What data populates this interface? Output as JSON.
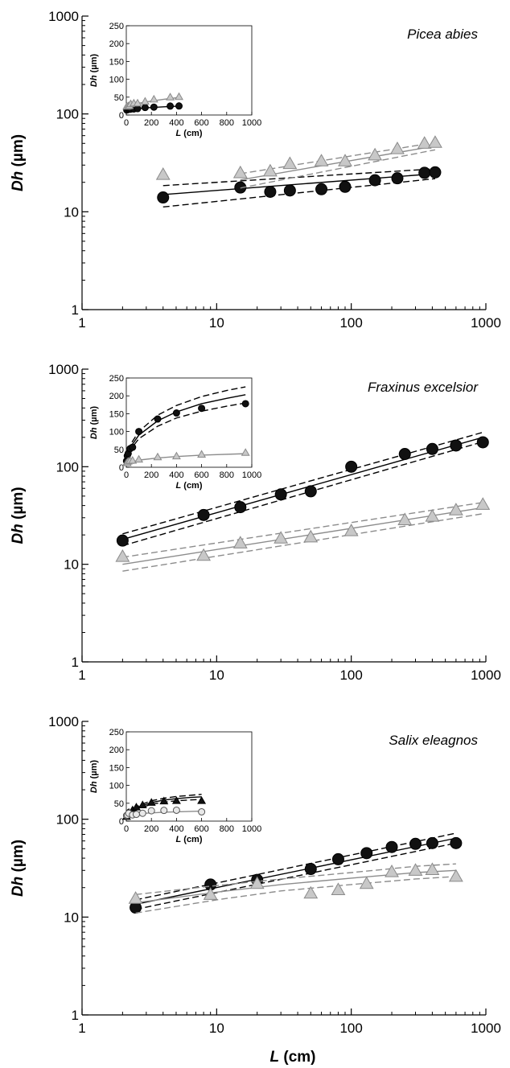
{
  "axis_labels": {
    "y_var": "Dh",
    "y_unit": " (µm)",
    "x_var": "L",
    "x_unit": " (cm)"
  },
  "colors": {
    "black_series": "#111111",
    "grey_series": "#c8c8c8",
    "grey_line": "#8c8c8c",
    "white_series": "#e8e8e8"
  },
  "chart_data": [
    {
      "type": "scatter",
      "title": "Picea abies",
      "xlabel": "L (cm)",
      "ylabel": "Dh (µm)",
      "xscale": "log",
      "yscale": "log",
      "xlim": [
        1,
        1000
      ],
      "ylim": [
        1,
        1000
      ],
      "xticks": [
        "1",
        "10",
        "100",
        "1000"
      ],
      "yticks": [
        "1",
        "10",
        "100",
        "1000"
      ],
      "grid": false,
      "series": [
        {
          "marker": "circle",
          "color": "black",
          "x": [
            4,
            15,
            25,
            35,
            60,
            90,
            150,
            220,
            350,
            420
          ],
          "y": [
            14,
            17.7,
            16,
            16.5,
            17,
            18,
            21,
            22,
            25,
            25.3
          ],
          "fit": {
            "x": [
              4,
              420
            ],
            "y": [
              15,
              24.5
            ],
            "ci_lower": [
              11.2,
              21.8
            ],
            "ci_upper": [
              18.5,
              27.5
            ]
          }
        },
        {
          "marker": "triangle",
          "color": "grey",
          "x": [
            4,
            15,
            25,
            35,
            60,
            90,
            150,
            220,
            350,
            420
          ],
          "y": [
            24,
            25,
            26,
            31,
            33,
            33,
            38,
            44,
            50,
            51
          ],
          "fit": {
            "x": [
              15,
              420
            ],
            "y": [
              21.2,
              47
            ],
            "ci_lower": [
              17.5,
              43
            ],
            "ci_upper": [
              24.5,
              51
            ]
          }
        }
      ],
      "inset": {
        "type": "scatter",
        "xlabel": "L (cm)",
        "ylabel": "Dh (µm)",
        "xlim": [
          0,
          1000
        ],
        "ylim": [
          0,
          250
        ],
        "xticks": [
          "0",
          "200",
          "400",
          "600",
          "800",
          "1000"
        ],
        "yticks": [
          "0",
          "50",
          "100",
          "150",
          "200",
          "250"
        ],
        "series": [
          {
            "marker": "circle",
            "color": "black",
            "x": [
              4,
              15,
              25,
              35,
              60,
              90,
              150,
              220,
              350,
              420
            ],
            "y": [
              14,
              17.7,
              16,
              16.5,
              17,
              18,
              21,
              22,
              25,
              25.3
            ],
            "fit": {
              "x": [
                4,
                40,
                100,
                200,
                300,
                420
              ],
              "y": [
                14,
                16.5,
                18.5,
                21,
                23,
                25
              ]
            }
          },
          {
            "marker": "triangle",
            "color": "grey",
            "x": [
              4,
              15,
              25,
              35,
              60,
              90,
              150,
              220,
              350,
              420
            ],
            "y": [
              24,
              25,
              26,
              31,
              33,
              33,
              38,
              44,
              50,
              51
            ],
            "fit": {
              "x": [
                4,
                40,
                100,
                200,
                300,
                420
              ],
              "y": [
                22,
                28,
                33,
                39,
                44,
                49
              ]
            }
          }
        ]
      }
    },
    {
      "type": "scatter",
      "title": "Fraxinus excelsior",
      "xlabel": "L (cm)",
      "ylabel": "Dh (µm)",
      "xscale": "log",
      "yscale": "log",
      "xlim": [
        1,
        1000
      ],
      "ylim": [
        1,
        1000
      ],
      "xticks": [
        "1",
        "10",
        "100",
        "1000"
      ],
      "yticks": [
        "1",
        "10",
        "100",
        "1000"
      ],
      "grid": false,
      "series": [
        {
          "marker": "circle",
          "color": "black",
          "x": [
            2,
            8,
            15,
            30,
            50,
            100,
            250,
            400,
            600,
            950
          ],
          "y": [
            17.5,
            32,
            38.5,
            52,
            56,
            100,
            135,
            152,
            165,
            178
          ],
          "fit": {
            "x": [
              2,
              950
            ],
            "y": [
              18,
              200
            ],
            "ci_lower": [
              15.5,
              180
            ],
            "ci_upper": [
              20.5,
              225
            ]
          }
        },
        {
          "marker": "triangle",
          "color": "grey",
          "x": [
            2,
            8,
            15,
            30,
            50,
            100,
            250,
            400,
            600,
            950
          ],
          "y": [
            12,
            12.3,
            16.5,
            18.5,
            19,
            22,
            28.5,
            31,
            36,
            41
          ],
          "fit": {
            "x": [
              2,
              950
            ],
            "y": [
              10,
              38
            ],
            "ci_lower": [
              8.5,
              33
            ],
            "ci_upper": [
              11.8,
              43
            ]
          }
        }
      ],
      "inset": {
        "type": "scatter",
        "xlabel": "L (cm)",
        "ylabel": "Dh (µm)",
        "xlim": [
          0,
          1000
        ],
        "ylim": [
          0,
          250
        ],
        "xticks": [
          "0",
          "200",
          "400",
          "600",
          "800",
          "1000"
        ],
        "yticks": [
          "0",
          "50",
          "100",
          "150",
          "200",
          "250"
        ],
        "series": [
          {
            "marker": "circle",
            "color": "black",
            "x": [
              2,
              8,
              15,
              30,
              50,
              100,
              250,
              400,
              600,
              950
            ],
            "y": [
              17.5,
              32,
              38.5,
              52,
              56,
              100,
              135,
              152,
              165,
              178
            ],
            "fit": {
              "x": [
                2,
                30,
                100,
                250,
                400,
                600,
                800,
                950
              ],
              "y": [
                16,
                55,
                90,
                130,
                155,
                178,
                193,
                203
              ]
            },
            "ci_lower": {
              "x": [
                2,
                30,
                100,
                250,
                400,
                600,
                800,
                950
              ],
              "y": [
                14,
                48,
                80,
                115,
                138,
                157,
                171,
                180
              ]
            },
            "ci_upper": {
              "x": [
                2,
                30,
                100,
                250,
                400,
                600,
                800,
                950
              ],
              "y": [
                19,
                62,
                100,
                146,
                173,
                198,
                215,
                225
              ]
            }
          },
          {
            "marker": "triangle",
            "color": "grey",
            "x": [
              2,
              8,
              15,
              30,
              50,
              100,
              250,
              400,
              600,
              950
            ],
            "y": [
              12,
              12.3,
              16.5,
              18.5,
              19,
              22,
              28.5,
              31,
              36,
              41
            ],
            "fit": {
              "x": [
                2,
                100,
                250,
                400,
                600,
                950
              ],
              "y": [
                10,
                20,
                26,
                30,
                34,
                38
              ]
            }
          }
        ]
      }
    },
    {
      "type": "scatter",
      "title": "Salix eleagnos",
      "xlabel": "L (cm)",
      "ylabel": "Dh (µm)",
      "xscale": "log",
      "yscale": "log",
      "xlim": [
        1,
        1000
      ],
      "ylim": [
        1,
        1000
      ],
      "xticks": [
        "1",
        "10",
        "100",
        "1000"
      ],
      "yticks": [
        "1",
        "10",
        "100",
        "1000"
      ],
      "grid": false,
      "series": [
        {
          "marker": "circle",
          "color": "black",
          "x": [
            2.5,
            9,
            20,
            50,
            80,
            130,
            200,
            300,
            400,
            600
          ],
          "y": [
            12.5,
            21.5,
            24,
            31,
            39,
            45,
            52,
            56,
            57,
            57
          ],
          "fit": {
            "x": [
              2.5,
              600
            ],
            "y": [
              13.5,
              64
            ],
            "ci_lower": [
              12,
              57
            ],
            "ci_upper": [
              15,
              72
            ]
          }
        },
        {
          "marker": "triangle",
          "color": "grey",
          "x": [
            2.5,
            9,
            20,
            50,
            80,
            130,
            200,
            300,
            400,
            600
          ],
          "y": [
            15.5,
            17,
            22,
            17.5,
            19,
            22,
            29,
            30,
            30.5,
            26
          ],
          "fit": {
            "x": [
              2.5,
              10,
              30,
              100,
              300,
              600
            ],
            "y": [
              14,
              18,
              21.5,
              25,
              28.5,
              30
            ],
            "ci_lower": [
              11,
              15,
              18.5,
              21.5,
              24.5,
              26
            ],
            "ci_upper": [
              17,
              21,
              24.5,
              28.5,
              33,
              35
            ]
          }
        }
      ],
      "inset": {
        "type": "scatter",
        "xlabel": "L (cm)",
        "ylabel": "Dh (µm)",
        "xlim": [
          0,
          1000
        ],
        "ylim": [
          0,
          250
        ],
        "xticks": [
          "0",
          "200",
          "400",
          "600",
          "800",
          "1000"
        ],
        "yticks": [
          "0",
          "50",
          "100",
          "150",
          "200",
          "250"
        ],
        "series": [
          {
            "marker": "triangle-filled",
            "color": "black",
            "x": [
              2.5,
              9,
              20,
              50,
              80,
              130,
              200,
              300,
              400,
              600
            ],
            "y": [
              12.5,
              21.5,
              24,
              31,
              39,
              45,
              52,
              56,
              57,
              57
            ],
            "fit": {
              "x": [
                2.5,
                100,
                200,
                300,
                400,
                500,
                600
              ],
              "y": [
                12,
                40,
                52,
                59,
                63,
                66,
                68
              ]
            },
            "ci_lower": {
              "x": [
                2.5,
                100,
                200,
                300,
                400,
                500,
                600
              ],
              "y": [
                10,
                36,
                47,
                53,
                57,
                59,
                61
              ]
            },
            "ci_upper": {
              "x": [
                2.5,
                100,
                200,
                300,
                400,
                500,
                600
              ],
              "y": [
                14,
                44,
                57,
                64,
                69,
                72,
                75
              ]
            }
          },
          {
            "marker": "circle-open",
            "color": "white",
            "x": [
              2.5,
              9,
              20,
              50,
              80,
              130,
              200,
              300,
              400,
              600
            ],
            "y": [
              15.5,
              17,
              22,
              17.5,
              19,
              22,
              29,
              30,
              30.5,
              26
            ],
            "fit": {
              "x": [
                2.5,
                100,
                300,
                600
              ],
              "y": [
                14,
                21,
                25,
                28
              ]
            }
          }
        ]
      }
    }
  ]
}
